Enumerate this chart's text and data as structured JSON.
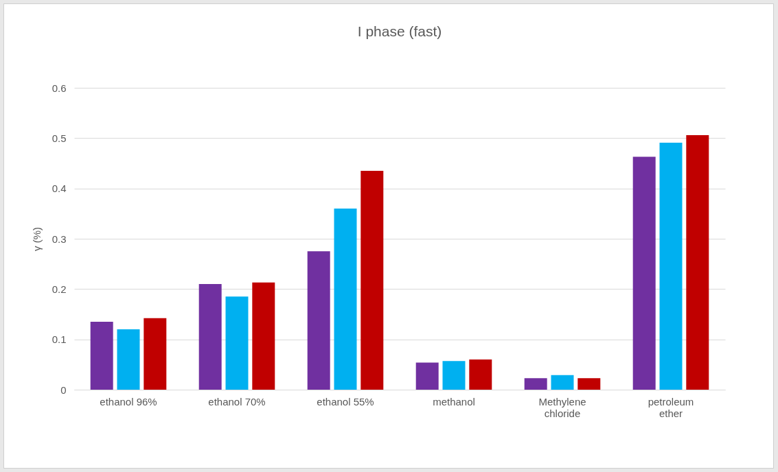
{
  "chart_data": {
    "type": "bar",
    "title": "I phase (fast)",
    "ylabel": "γ (%)",
    "categories": [
      "ethanol 96%",
      "ethanol 70%",
      "ethanol 55%",
      "methanol",
      "Methylene chloride",
      "petroleum ether"
    ],
    "series": [
      {
        "color": "#7030a0",
        "values": [
          0.135,
          0.21,
          0.275,
          0.054,
          0.023,
          0.463
        ]
      },
      {
        "color": "#00b0f0",
        "values": [
          0.12,
          0.185,
          0.36,
          0.057,
          0.029,
          0.491
        ]
      },
      {
        "color": "#c00000",
        "values": [
          0.142,
          0.213,
          0.435,
          0.06,
          0.023,
          0.506
        ]
      }
    ],
    "ylim": [
      0,
      0.6
    ],
    "yticks": [
      0,
      0.1,
      0.2,
      0.3,
      0.4,
      0.5,
      0.6
    ],
    "grid": "y",
    "legend": false
  }
}
